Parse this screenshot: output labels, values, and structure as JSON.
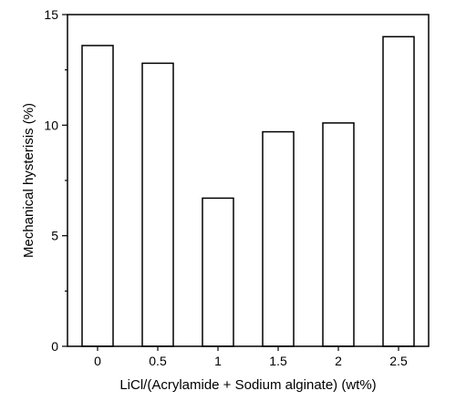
{
  "chart_data": {
    "type": "bar",
    "title": "",
    "xlabel": "LiCl/(Acrylamide + Sodium alginate) (wt%)",
    "ylabel": "Mechanical hysterisis (%)",
    "categories": [
      "0",
      "0.5",
      "1",
      "1.5",
      "2",
      "2.5"
    ],
    "values": [
      13.6,
      12.8,
      6.7,
      9.7,
      10.1,
      14.0
    ],
    "ylim": [
      0,
      15
    ],
    "yticks": [
      0,
      5,
      10,
      15
    ],
    "grid": false,
    "legend": "none",
    "colors": {
      "bar_fill": "#ffffff",
      "bar_stroke": "#000000",
      "axis": "#000000"
    }
  }
}
